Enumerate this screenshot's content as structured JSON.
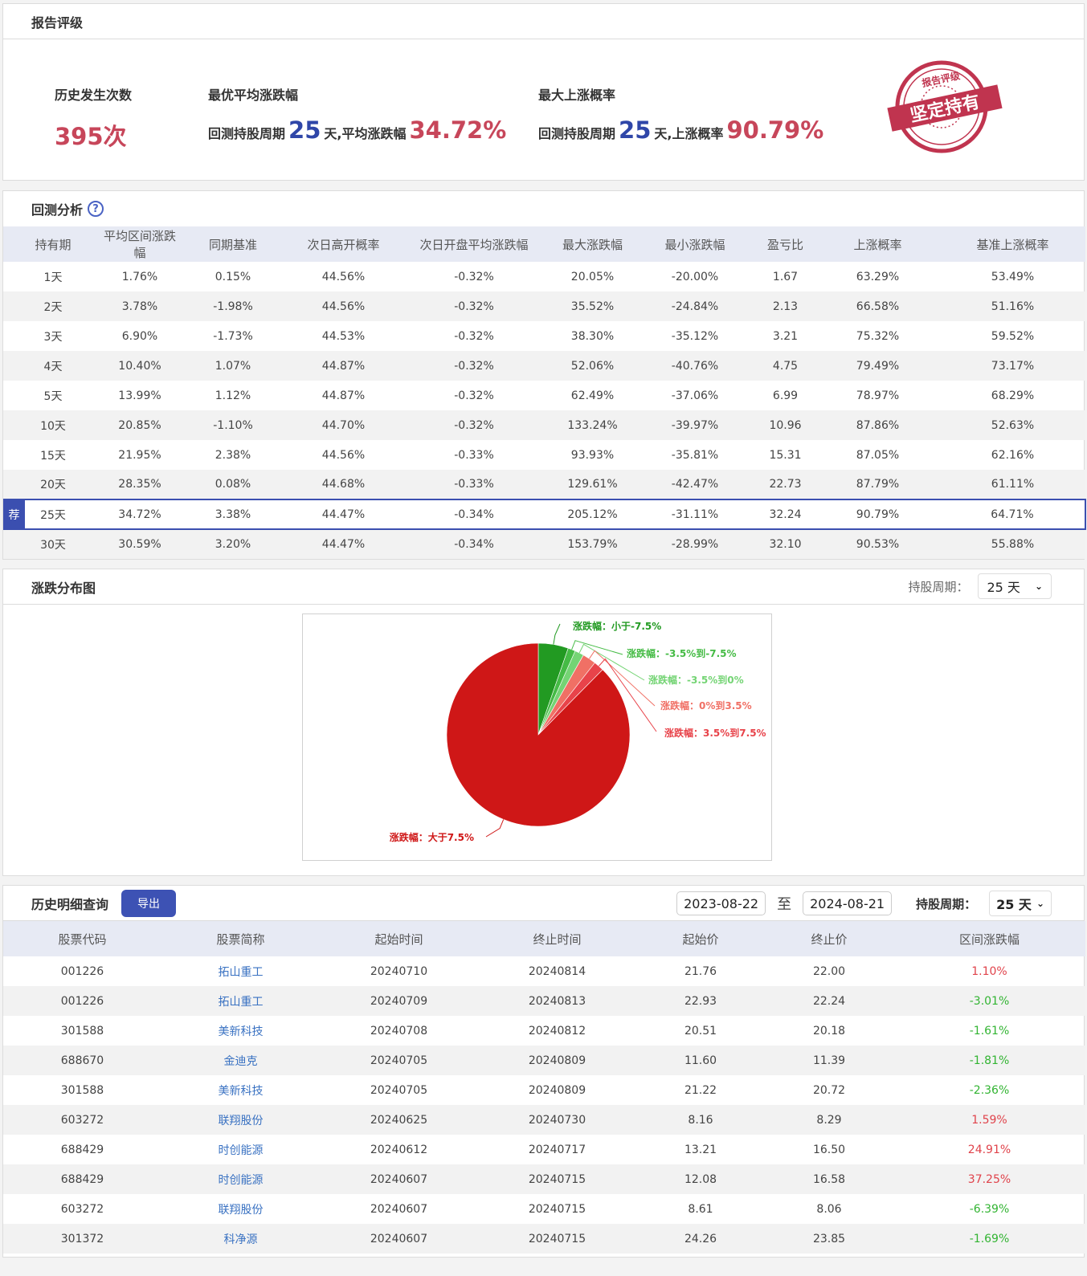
{
  "rating": {
    "title": "报告评级",
    "occurrences_label": "历史发生次数",
    "occurrences_value": "395次",
    "best_avg_label": "最优平均涨跌幅",
    "best_avg_prefix": "回测持股周期",
    "best_avg_days": "25",
    "best_avg_mid": "天,平均涨跌幅",
    "best_avg_value": "34.72%",
    "max_up_label": "最大上涨概率",
    "max_up_prefix": "回测持股周期",
    "max_up_days": "25",
    "max_up_mid": "天,上涨概率",
    "max_up_value": "90.79%",
    "stamp": {
      "top_text": "报告评级",
      "main_text": "坚定持有",
      "color": "#c0344f"
    }
  },
  "backtest": {
    "title": "回测分析",
    "help_icon": "question-circle-icon",
    "recommend_badge": "荐",
    "columns": [
      "持有期",
      "平均区间涨跌幅",
      "同期基准",
      "次日高开概率",
      "次日开盘平均涨跌幅",
      "最大涨跌幅",
      "最小涨跌幅",
      "盈亏比",
      "上涨概率",
      "基准上涨概率"
    ],
    "rows": [
      [
        "1天",
        "1.76%",
        "0.15%",
        "44.56%",
        "-0.32%",
        "20.05%",
        "-20.00%",
        "1.67",
        "63.29%",
        "53.49%"
      ],
      [
        "2天",
        "3.78%",
        "-1.98%",
        "44.56%",
        "-0.32%",
        "35.52%",
        "-24.84%",
        "2.13",
        "66.58%",
        "51.16%"
      ],
      [
        "3天",
        "6.90%",
        "-1.73%",
        "44.53%",
        "-0.32%",
        "38.30%",
        "-35.12%",
        "3.21",
        "75.32%",
        "59.52%"
      ],
      [
        "4天",
        "10.40%",
        "1.07%",
        "44.87%",
        "-0.32%",
        "52.06%",
        "-40.76%",
        "4.75",
        "79.49%",
        "73.17%"
      ],
      [
        "5天",
        "13.99%",
        "1.12%",
        "44.87%",
        "-0.32%",
        "62.49%",
        "-37.06%",
        "6.99",
        "78.97%",
        "68.29%"
      ],
      [
        "10天",
        "20.85%",
        "-1.10%",
        "44.70%",
        "-0.32%",
        "133.24%",
        "-39.97%",
        "10.96",
        "87.86%",
        "52.63%"
      ],
      [
        "15天",
        "21.95%",
        "2.38%",
        "44.56%",
        "-0.33%",
        "93.93%",
        "-35.81%",
        "15.31",
        "87.05%",
        "62.16%"
      ],
      [
        "20天",
        "28.35%",
        "0.08%",
        "44.68%",
        "-0.33%",
        "129.61%",
        "-42.47%",
        "22.73",
        "87.79%",
        "61.11%"
      ],
      [
        "25天",
        "34.72%",
        "3.38%",
        "44.47%",
        "-0.34%",
        "205.12%",
        "-31.11%",
        "32.24",
        "90.79%",
        "64.71%"
      ],
      [
        "30天",
        "30.59%",
        "3.20%",
        "44.47%",
        "-0.34%",
        "153.79%",
        "-28.99%",
        "32.10",
        "90.53%",
        "55.88%"
      ]
    ],
    "recommended_row": 8
  },
  "distribution": {
    "title": "涨跌分布图",
    "period_label": "持股周期：",
    "period_value": "25 天"
  },
  "chart_data": {
    "type": "pie",
    "title": "涨跌分布图",
    "categories": [
      "涨跌幅：小于-7.5%",
      "涨跌幅：-3.5%到-7.5%",
      "涨跌幅：-3.5%到0%",
      "涨跌幅：0%到3.5%",
      "涨跌幅：3.5%到7.5%",
      "涨跌幅：大于7.5%"
    ],
    "values": [
      5.3,
      1.3,
      1.6,
      2.4,
      1.8,
      87.6
    ],
    "colors": [
      "#229a22",
      "#45bb45",
      "#74d474",
      "#f07065",
      "#e8434a",
      "#cf1717"
    ],
    "label_colors": [
      "#229a22",
      "#45bb45",
      "#74d474",
      "#f07065",
      "#e8434a",
      "#cf1717"
    ],
    "legend_position": "none (outside labels)",
    "start_angle": "12 o'clock, clockwise"
  },
  "history": {
    "title": "历史明细查询",
    "export_label": "导出",
    "date_from": "2023-08-22",
    "to_label": "至",
    "date_to": "2024-08-21",
    "period_label": "持股周期：",
    "period_value": "25 天",
    "columns": [
      "股票代码",
      "股票简称",
      "起始时间",
      "终止时间",
      "起始价",
      "终止价",
      "区间涨跌幅"
    ],
    "rows": [
      [
        "001226",
        "拓山重工",
        "20240710",
        "20240814",
        "21.76",
        "22.00",
        "1.10%"
      ],
      [
        "001226",
        "拓山重工",
        "20240709",
        "20240813",
        "22.93",
        "22.24",
        "-3.01%"
      ],
      [
        "301588",
        "美新科技",
        "20240708",
        "20240812",
        "20.51",
        "20.18",
        "-1.61%"
      ],
      [
        "688670",
        "金迪克",
        "20240705",
        "20240809",
        "11.60",
        "11.39",
        "-1.81%"
      ],
      [
        "301588",
        "美新科技",
        "20240705",
        "20240809",
        "21.22",
        "20.72",
        "-2.36%"
      ],
      [
        "603272",
        "联翔股份",
        "20240625",
        "20240730",
        "8.16",
        "8.29",
        "1.59%"
      ],
      [
        "688429",
        "时创能源",
        "20240612",
        "20240717",
        "13.21",
        "16.50",
        "24.91%"
      ],
      [
        "688429",
        "时创能源",
        "20240607",
        "20240715",
        "12.08",
        "16.58",
        "37.25%"
      ],
      [
        "603272",
        "联翔股份",
        "20240607",
        "20240715",
        "8.61",
        "8.06",
        "-6.39%"
      ],
      [
        "301372",
        "科净源",
        "20240607",
        "20240715",
        "24.26",
        "23.85",
        "-1.69%"
      ]
    ]
  }
}
